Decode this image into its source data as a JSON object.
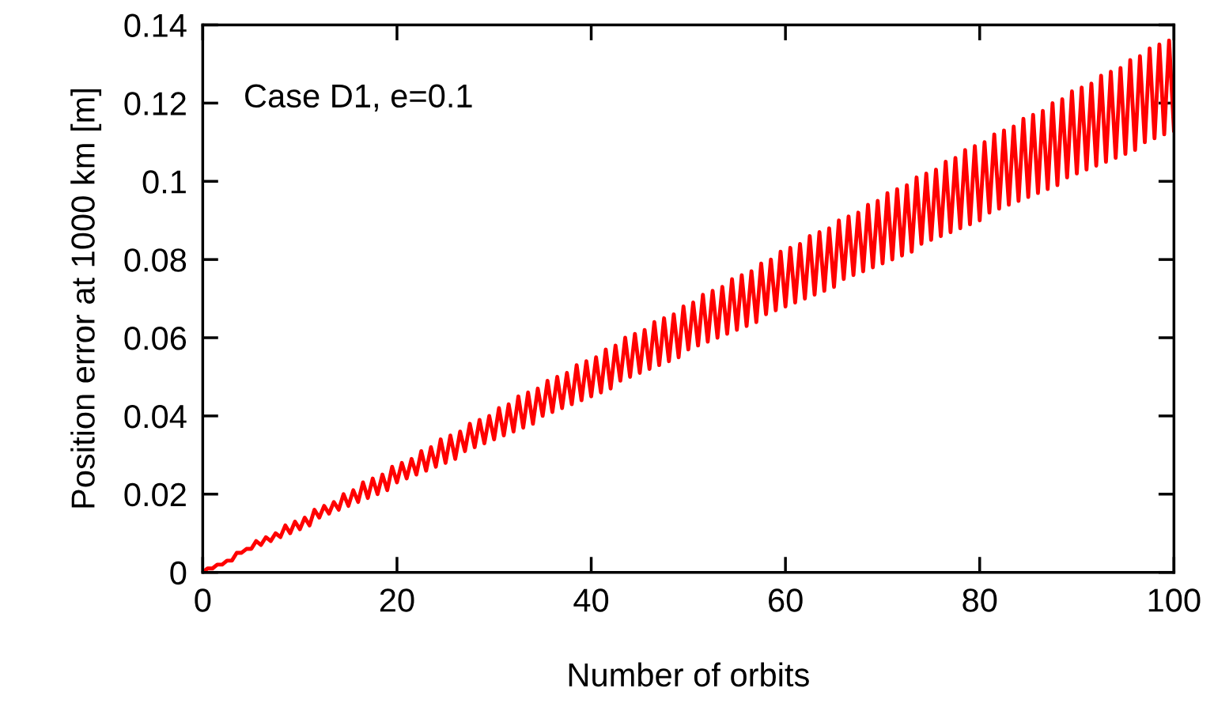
{
  "chart_data": {
    "type": "line",
    "xlabel": "Number of orbits",
    "ylabel": "Position error at 1000 km [m]",
    "annotations": [
      "Case D1, e=0.1"
    ],
    "xlim": [
      0,
      100
    ],
    "xticks": [
      0,
      20,
      40,
      60,
      80,
      100
    ],
    "ylim": [
      0,
      0.14
    ],
    "yticks": [
      0,
      0.02,
      0.04,
      0.06,
      0.08,
      0.1,
      0.12,
      0.14
    ],
    "grid": false,
    "series": [
      {
        "color": "#ff0000",
        "x": [
          0,
          0.5,
          1,
          1.5,
          2,
          2.5,
          3,
          3.5,
          4,
          4.5,
          5,
          5.5,
          6,
          6.5,
          7,
          7.5,
          8,
          8.5,
          9,
          9.5,
          10,
          10.5,
          11,
          11.5,
          12,
          12.5,
          13,
          13.5,
          14,
          14.5,
          15,
          15.5,
          16,
          16.5,
          17,
          17.5,
          18,
          18.5,
          19,
          19.5,
          20,
          20.5,
          21,
          21.5,
          22,
          22.5,
          23,
          23.5,
          24,
          24.5,
          25,
          25.5,
          26,
          26.5,
          27,
          27.5,
          28,
          28.5,
          29,
          29.5,
          30,
          30.5,
          31,
          31.5,
          32,
          32.5,
          33,
          33.5,
          34,
          34.5,
          35,
          35.5,
          36,
          36.5,
          37,
          37.5,
          38,
          38.5,
          39,
          39.5,
          40,
          40.5,
          41,
          41.5,
          42,
          42.5,
          43,
          43.5,
          44,
          44.5,
          45,
          45.5,
          46,
          46.5,
          47,
          47.5,
          48,
          48.5,
          49,
          49.5,
          50,
          50.5,
          51,
          51.5,
          52,
          52.5,
          53,
          53.5,
          54,
          54.5,
          55,
          55.5,
          56,
          56.5,
          57,
          57.5,
          58,
          58.5,
          59,
          59.5,
          60,
          60.5,
          61,
          61.5,
          62,
          62.5,
          63,
          63.5,
          64,
          64.5,
          65,
          65.5,
          66,
          66.5,
          67,
          67.5,
          68,
          68.5,
          69,
          69.5,
          70,
          70.5,
          71,
          71.5,
          72,
          72.5,
          73,
          73.5,
          74,
          74.5,
          75,
          75.5,
          76,
          76.5,
          77,
          77.5,
          78,
          78.5,
          79,
          79.5,
          80,
          80.5,
          81,
          81.5,
          82,
          82.5,
          83,
          83.5,
          84,
          84.5,
          85,
          85.5,
          86,
          86.5,
          87,
          87.5,
          88,
          88.5,
          89,
          89.5,
          90,
          90.5,
          91,
          91.5,
          92,
          92.5,
          93,
          93.5,
          94,
          94.5,
          95,
          95.5,
          96,
          96.5,
          97,
          97.5,
          98,
          98.5,
          99,
          99.5,
          100
        ],
        "values": [
          0,
          0.001,
          0.001,
          0.002,
          0.002,
          0.003,
          0.003,
          0.005,
          0.005,
          0.006,
          0.006,
          0.008,
          0.007,
          0.009,
          0.008,
          0.01,
          0.009,
          0.012,
          0.01,
          0.013,
          0.011,
          0.014,
          0.012,
          0.016,
          0.014,
          0.017,
          0.015,
          0.018,
          0.016,
          0.02,
          0.017,
          0.021,
          0.018,
          0.023,
          0.019,
          0.024,
          0.02,
          0.025,
          0.021,
          0.027,
          0.023,
          0.028,
          0.024,
          0.029,
          0.025,
          0.031,
          0.026,
          0.032,
          0.027,
          0.034,
          0.028,
          0.035,
          0.029,
          0.036,
          0.031,
          0.038,
          0.032,
          0.039,
          0.033,
          0.04,
          0.034,
          0.042,
          0.035,
          0.043,
          0.036,
          0.045,
          0.037,
          0.046,
          0.038,
          0.047,
          0.04,
          0.049,
          0.041,
          0.05,
          0.042,
          0.051,
          0.043,
          0.053,
          0.044,
          0.054,
          0.045,
          0.055,
          0.046,
          0.057,
          0.047,
          0.058,
          0.049,
          0.06,
          0.05,
          0.061,
          0.051,
          0.062,
          0.052,
          0.064,
          0.053,
          0.065,
          0.054,
          0.066,
          0.055,
          0.068,
          0.057,
          0.069,
          0.058,
          0.071,
          0.059,
          0.072,
          0.06,
          0.073,
          0.061,
          0.075,
          0.062,
          0.076,
          0.063,
          0.077,
          0.064,
          0.079,
          0.066,
          0.08,
          0.067,
          0.082,
          0.068,
          0.083,
          0.069,
          0.084,
          0.07,
          0.086,
          0.071,
          0.087,
          0.072,
          0.088,
          0.073,
          0.09,
          0.075,
          0.091,
          0.076,
          0.092,
          0.077,
          0.094,
          0.078,
          0.095,
          0.079,
          0.097,
          0.08,
          0.098,
          0.081,
          0.099,
          0.082,
          0.101,
          0.084,
          0.102,
          0.085,
          0.103,
          0.086,
          0.105,
          0.087,
          0.106,
          0.088,
          0.108,
          0.089,
          0.109,
          0.09,
          0.11,
          0.092,
          0.112,
          0.093,
          0.113,
          0.094,
          0.114,
          0.095,
          0.116,
          0.096,
          0.117,
          0.097,
          0.118,
          0.098,
          0.12,
          0.099,
          0.121,
          0.101,
          0.123,
          0.102,
          0.124,
          0.103,
          0.125,
          0.104,
          0.127,
          0.105,
          0.128,
          0.106,
          0.129,
          0.107,
          0.131,
          0.108,
          0.132,
          0.11,
          0.134,
          0.111,
          0.135,
          0.112,
          0.136,
          0.113
        ]
      }
    ]
  }
}
